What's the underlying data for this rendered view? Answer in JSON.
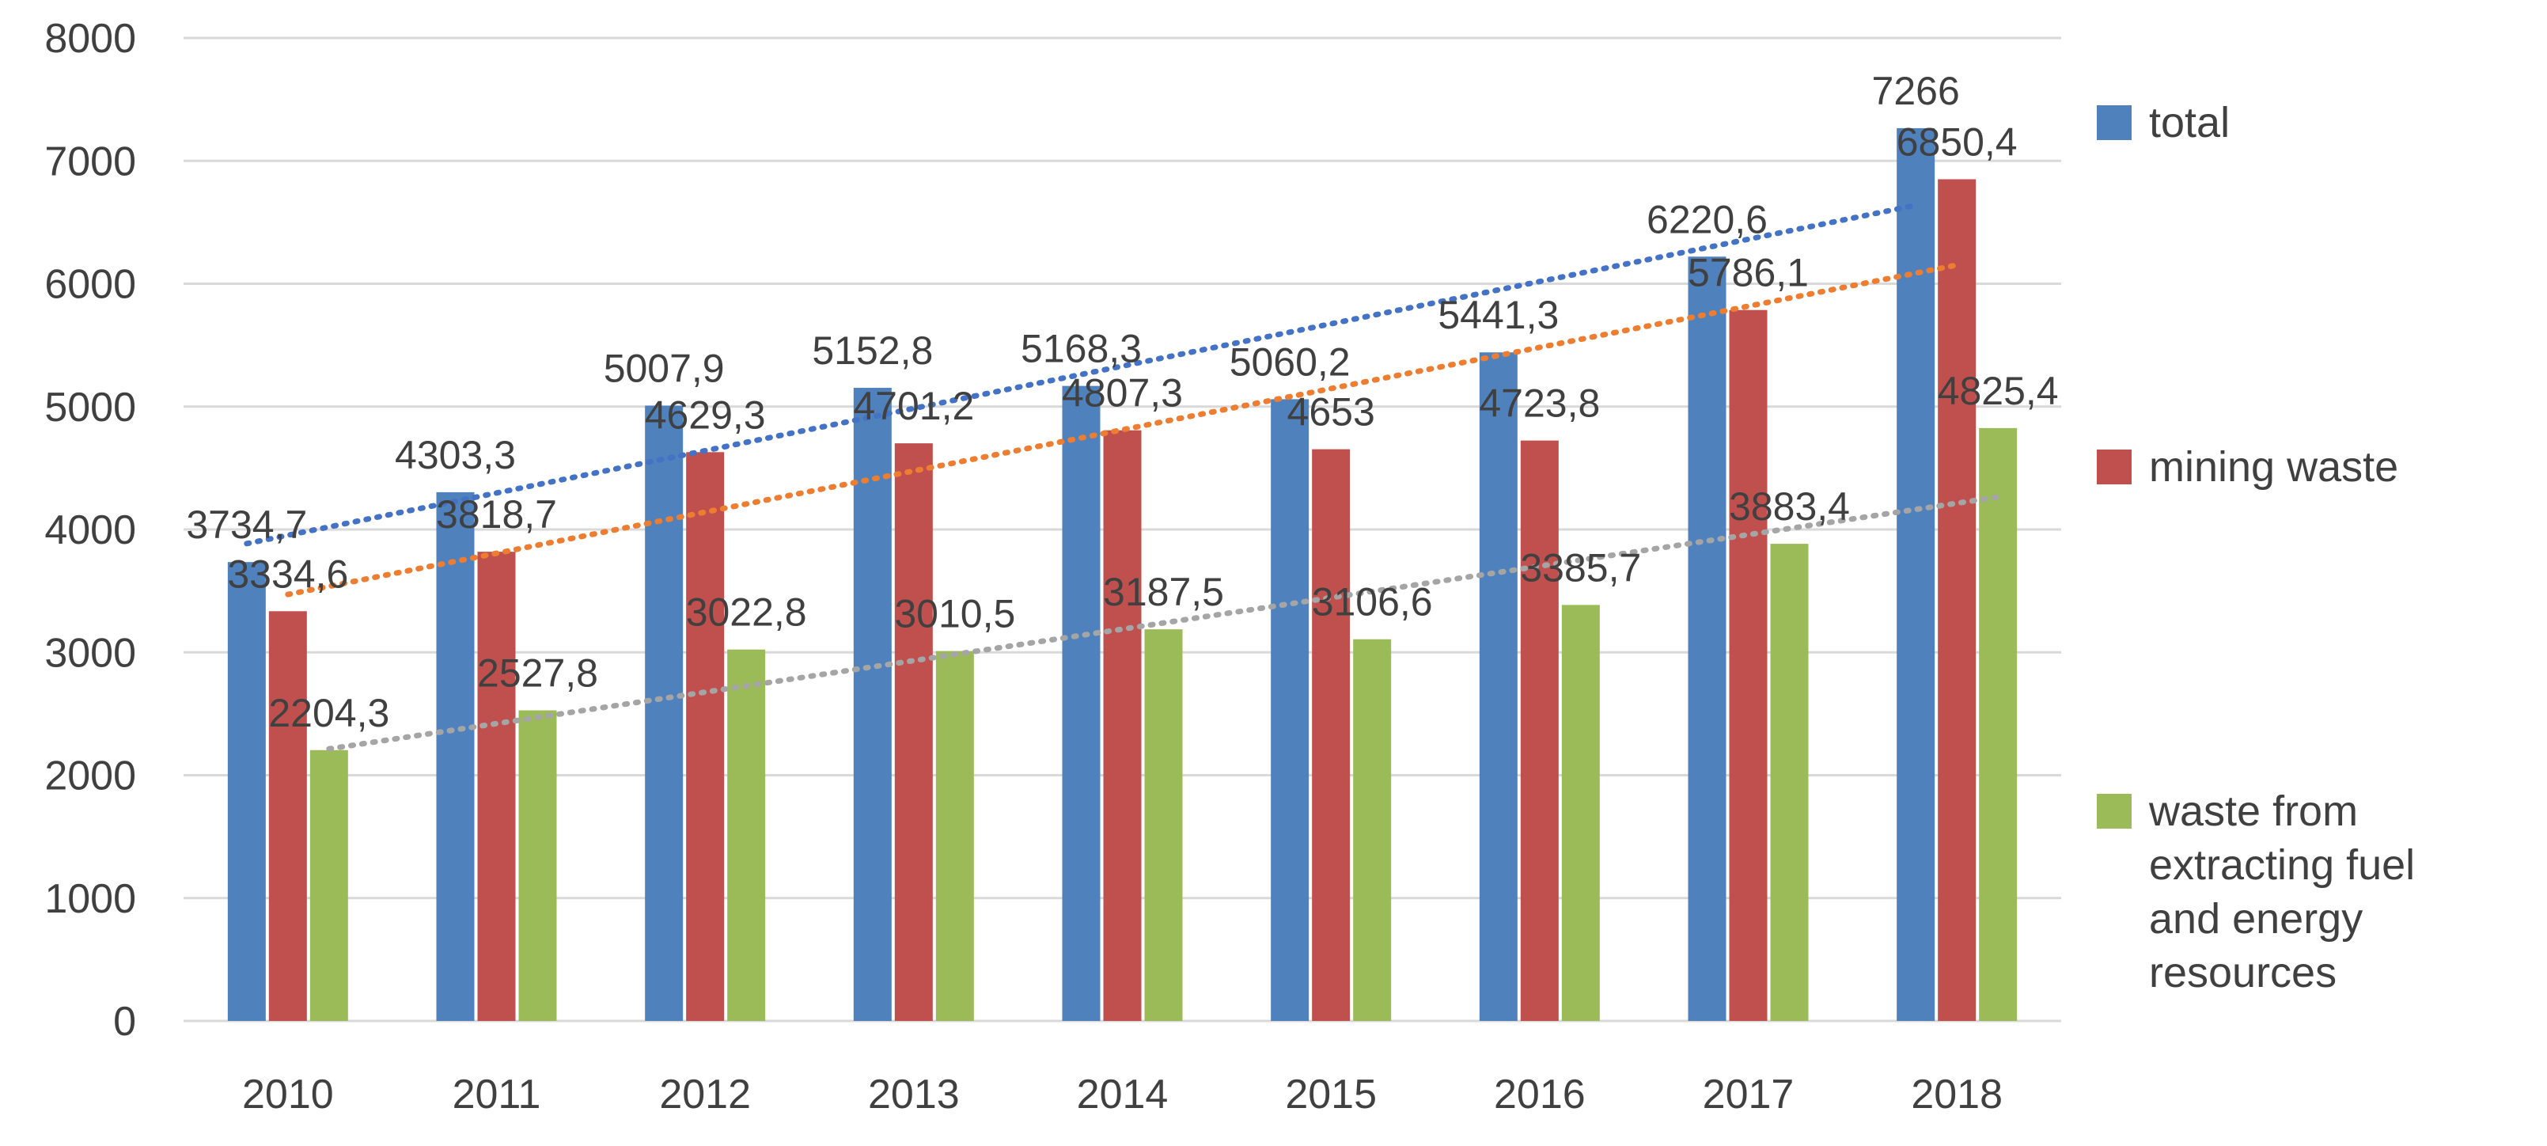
{
  "chart_data": {
    "type": "bar",
    "title": "",
    "xlabel": "",
    "ylabel": "",
    "categories": [
      "2010",
      "2011",
      "2012",
      "2013",
      "2014",
      "2015",
      "2016",
      "2017",
      "2018"
    ],
    "ylim": [
      0,
      8000
    ],
    "yticks": [
      "0",
      "1000",
      "2000",
      "3000",
      "4000",
      "5000",
      "6000",
      "7000",
      "8000"
    ],
    "grid": true,
    "legend_position": "right",
    "series": [
      {
        "name": "total",
        "color": "#4f81bd",
        "values": [
          3734.7,
          4303.3,
          5007.9,
          5152.8,
          5168.3,
          5060.2,
          5441.3,
          6220.6,
          7266
        ],
        "labels": [
          "3734,7",
          "4303,3",
          "5007,9",
          "5152,8",
          "5168,3",
          "5060,2",
          "5441,3",
          "6220,6",
          "7266"
        ],
        "trendline_color": "#4472c4"
      },
      {
        "name": "mining waste",
        "color": "#c0504d",
        "values": [
          3334.6,
          3818.7,
          4629.3,
          4701.2,
          4807.3,
          4653,
          4723.8,
          5786.1,
          6850.4
        ],
        "labels": [
          "3334,6",
          "3818,7",
          "4629,3",
          "4701,2",
          "4807,3",
          "4653",
          "4723,8",
          "5786,1",
          "6850,4"
        ],
        "trendline_color": "#ed7d31"
      },
      {
        "name": "waste from extracting fuel and energy resources",
        "legend_lines": [
          "waste from",
          "extracting fuel",
          "and energy",
          "resources"
        ],
        "color": "#9bbb59",
        "values": [
          2204.3,
          2527.8,
          3022.8,
          3010.5,
          3187.5,
          3106.6,
          3385.7,
          3883.4,
          4825.4
        ],
        "labels": [
          "2204,3",
          "2527,8",
          "3022,8",
          "3010,5",
          "3187,5",
          "3106,6",
          "3385,7",
          "3883,4",
          "4825,4"
        ],
        "trendline_color": "#a5a5a5"
      }
    ]
  }
}
